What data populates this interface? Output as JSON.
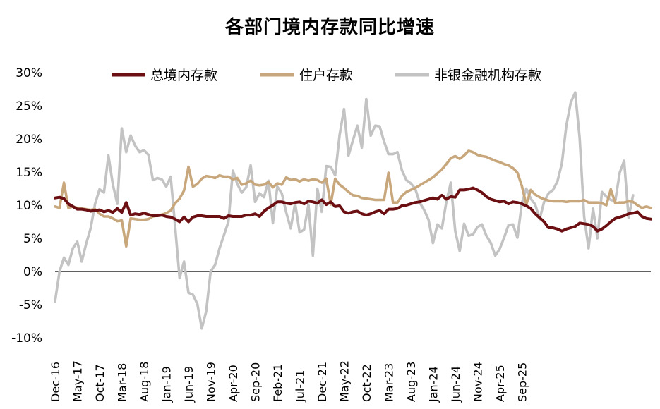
{
  "chart_data": {
    "type": "line",
    "title": "各部门境内存款同比增速",
    "xlabel": "",
    "ylabel": "",
    "ylim": [
      -10,
      30
    ],
    "yticks": [
      "-10%",
      "-5%",
      "0%",
      "5%",
      "10%",
      "15%",
      "20%",
      "25%",
      "30%"
    ],
    "ytick_values": [
      -10,
      -5,
      0,
      5,
      10,
      15,
      20,
      25,
      30
    ],
    "xtick_labels": [
      "Dec-16",
      "May-17",
      "Oct-17",
      "Mar-18",
      "Aug-18",
      "Jan-19",
      "Jun-19",
      "Nov-19",
      "Apr-20",
      "Sep-20",
      "Feb-21",
      "Jul-21",
      "Dec-21",
      "May-22",
      "Oct-22",
      "Mar-23",
      "Aug-23",
      "Jan-24",
      "Jun-24",
      "Nov-24",
      "Apr-25",
      "Sep-25"
    ],
    "x_start": "Dec-16",
    "x_end": "Oct-25",
    "legend_position": "top",
    "grid": false,
    "series": [
      {
        "name": "总境内存款",
        "color": "#6b0f12",
        "values": [
          11.1,
          11.2,
          11.0,
          10.2,
          9.8,
          9.4,
          9.4,
          9.3,
          9.1,
          9.2,
          9.3,
          9.0,
          9.2,
          8.9,
          9.5,
          8.9,
          10.4,
          8.5,
          8.7,
          8.6,
          8.8,
          8.6,
          8.4,
          8.4,
          8.5,
          8.3,
          8.2,
          7.9,
          7.5,
          8.2,
          7.5,
          8.2,
          8.4,
          8.4,
          8.3,
          8.3,
          8.3,
          8.3,
          8.0,
          8.4,
          8.3,
          8.3,
          8.3,
          8.5,
          8.5,
          8.7,
          8.3,
          9.1,
          9.6,
          10.0,
          10.5,
          10.5,
          10.3,
          10.2,
          10.4,
          10.5,
          10.2,
          10.6,
          10.5,
          10.3,
          10.8,
          10.1,
          10.5,
          9.8,
          9.9,
          9.0,
          8.8,
          9.0,
          9.1,
          8.7,
          8.5,
          8.7,
          9.0,
          9.2,
          8.7,
          9.4,
          9.4,
          9.5,
          9.9,
          10.0,
          10.2,
          10.4,
          10.5,
          10.7,
          10.9,
          11.1,
          10.9,
          11.5,
          10.9,
          11.3,
          11.2,
          12.3,
          12.3,
          12.4,
          12.6,
          12.3,
          11.9,
          11.3,
          10.9,
          10.7,
          10.5,
          10.6,
          10.2,
          10.5,
          10.4,
          10.2,
          9.9,
          9.5,
          8.7,
          8.1,
          7.5,
          6.6,
          6.6,
          6.4,
          6.1,
          6.4,
          6.6,
          6.8,
          7.3,
          7.2,
          7.1,
          6.8,
          6.1,
          6.4,
          6.9,
          7.5,
          8.0,
          8.2,
          8.4,
          8.7,
          8.8,
          9.0,
          8.3,
          8.0,
          7.9
        ]
      },
      {
        "name": "住户存款",
        "color": "#c8a77d",
        "values": [
          9.8,
          9.6,
          13.4,
          9.6,
          9.8,
          9.6,
          9.5,
          9.4,
          9.3,
          9.4,
          8.7,
          8.3,
          8.3,
          8.0,
          7.6,
          7.7,
          3.8,
          8.0,
          7.9,
          7.8,
          7.8,
          7.9,
          8.3,
          8.4,
          8.6,
          8.8,
          9.2,
          10.3,
          11.0,
          12.2,
          15.8,
          12.8,
          13.2,
          14.0,
          14.4,
          14.3,
          14.1,
          14.5,
          14.3,
          14.3,
          13.9,
          14.1,
          13.1,
          13.3,
          13.7,
          13.1,
          13.0,
          13.1,
          13.5,
          12.7,
          13.3,
          13.1,
          14.2,
          13.8,
          13.9,
          13.6,
          13.9,
          13.7,
          13.9,
          13.8,
          13.4,
          14.0,
          10.1,
          14.0,
          13.1,
          12.6,
          12.0,
          11.5,
          11.4,
          11.1,
          11.0,
          10.9,
          10.8,
          10.8,
          10.8,
          14.9,
          10.4,
          10.4,
          11.4,
          12.0,
          12.3,
          12.6,
          13.0,
          13.4,
          13.8,
          14.2,
          14.8,
          15.4,
          16.2,
          17.1,
          17.4,
          17.0,
          17.5,
          18.2,
          18.0,
          17.6,
          17.4,
          17.3,
          17.0,
          16.7,
          16.5,
          16.2,
          16.0,
          15.6,
          14.9,
          12.9,
          10.1,
          12.3,
          11.6,
          11.2,
          10.9,
          10.7,
          10.6,
          10.6,
          10.6,
          10.5,
          10.6,
          10.6,
          10.6,
          10.8,
          10.4,
          10.4,
          10.4,
          10.3,
          10.0,
          12.4,
          10.3,
          10.4,
          10.4,
          10.6,
          10.5,
          10.0,
          9.6,
          9.8,
          9.6
        ]
      },
      {
        "name": "非银金融机构存款",
        "color": "#c3c3c3",
        "values": [
          -4.5,
          0.0,
          2.1,
          1.0,
          3.5,
          4.5,
          1.5,
          4.2,
          6.5,
          10.2,
          12.4,
          11.9,
          17.5,
          13.1,
          10.2,
          21.6,
          18.0,
          20.5,
          19.0,
          18.0,
          18.3,
          17.6,
          13.8,
          14.1,
          13.9,
          12.8,
          14.3,
          6.8,
          -1.0,
          1.5,
          -3.2,
          -3.5,
          -4.9,
          -8.6,
          -6.0,
          0.0,
          1.0,
          3.5,
          5.5,
          7.5,
          15.2,
          13.2,
          11.9,
          12.7,
          16.0,
          10.5,
          11.8,
          11.2,
          13.7,
          7.3,
          12.8,
          11.8,
          8.9,
          6.5,
          10.3,
          5.9,
          6.3,
          10.1,
          2.4,
          12.5,
          9.0,
          15.9,
          15.8,
          14.5,
          20.6,
          24.5,
          17.5,
          19.8,
          22.0,
          18.7,
          26.0,
          20.5,
          22.0,
          21.9,
          19.6,
          17.7,
          17.7,
          18.0,
          15.3,
          13.8,
          13.3,
          12.5,
          10.4,
          9.3,
          7.8,
          4.3,
          7.1,
          6.5,
          10.5,
          13.4,
          6.1,
          3.1,
          7.2,
          5.4,
          5.6,
          6.7,
          7.1,
          5.4,
          4.3,
          2.4,
          3.4,
          5.1,
          7.0,
          7.1,
          5.1,
          10.3,
          12.5,
          11.0,
          10.1,
          7.9,
          10.5,
          11.8,
          12.3,
          13.6,
          16.3,
          22.0,
          25.5,
          27.0,
          20.1,
          8.3,
          3.5,
          9.5,
          5.0,
          12.0,
          11.3,
          10.8,
          10.6,
          14.9,
          16.7,
          8.1,
          11.5
        ]
      }
    ]
  }
}
